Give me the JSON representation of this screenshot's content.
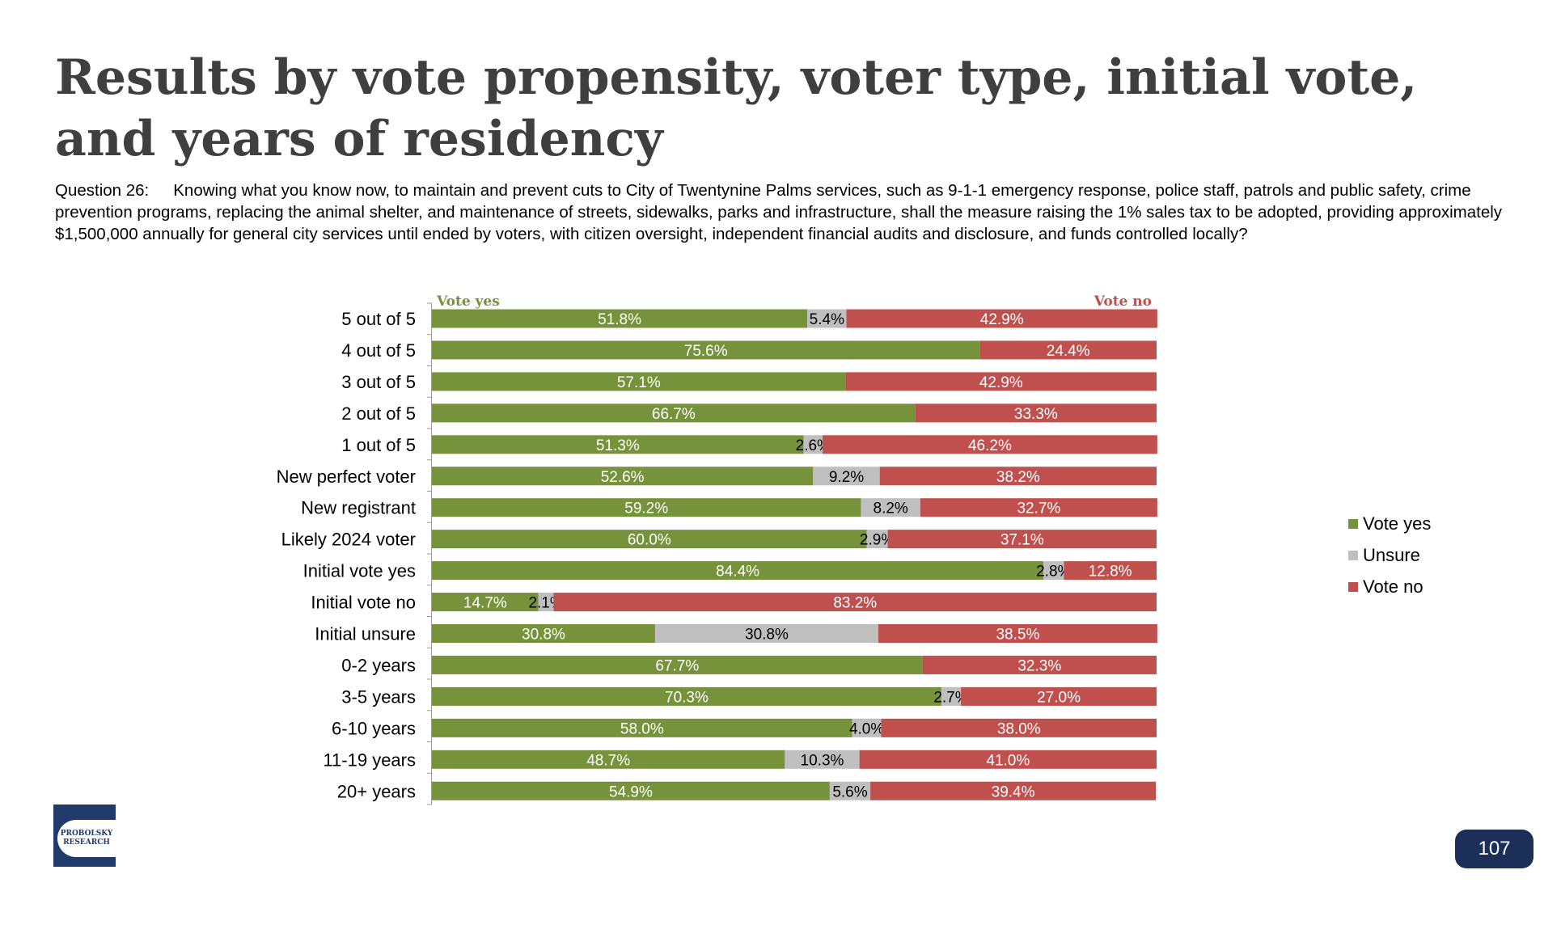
{
  "title_line1": "Results by vote propensity, voter type, initial vote,",
  "title_line2": "and years of residency",
  "question_label": "Question 26:",
  "question_text": "Knowing what you know now, to maintain and prevent cuts to City of Twentynine Palms services, such as 9-1-1 emergency response, police staff, patrols and public safety, crime prevention programs, replacing the animal shelter, and maintenance of streets, sidewalks, parks and infrastructure, shall the measure raising the 1% sales tax to be adopted, providing approximately $1,500,000 annually for general city services until ended by voters, with citizen oversight, independent financial audits and disclosure, and funds controlled locally?",
  "logo_text_line1": "PROBOLSKY",
  "logo_text_line2": "RESEARCH",
  "page_number": "107",
  "colors": {
    "vote_yes": "#76933c",
    "unsure": "#bfbfbf",
    "vote_no": "#c0504d",
    "title": "#3f3f3f",
    "badge": "#1b2f59"
  },
  "chart_data": {
    "type": "bar",
    "orientation": "horizontal",
    "stacked": true,
    "percent_stacked": true,
    "header_left": "Vote yes",
    "header_right": "Vote no",
    "legend_position": "right",
    "categories": [
      "5 out of 5",
      "4 out of 5",
      "3 out of 5",
      "2 out of 5",
      "1 out of 5",
      "New perfect voter",
      "New registrant",
      "Likely 2024 voter",
      "Initial vote yes",
      "Initial vote no",
      "Initial unsure",
      "0-2 years",
      "3-5 years",
      "6-10 years",
      "11-19 years",
      "20+ years"
    ],
    "series": [
      {
        "name": "Vote yes",
        "color": "#76933c",
        "values": [
          51.8,
          75.6,
          57.1,
          66.7,
          51.3,
          52.6,
          59.2,
          60.0,
          84.4,
          14.7,
          30.8,
          67.7,
          70.3,
          58.0,
          48.7,
          54.9
        ]
      },
      {
        "name": "Unsure",
        "color": "#bfbfbf",
        "values": [
          5.4,
          0,
          0,
          0,
          2.6,
          9.2,
          8.2,
          2.9,
          2.8,
          2.1,
          30.8,
          0,
          2.7,
          4.0,
          10.3,
          5.6
        ]
      },
      {
        "name": "Vote no",
        "color": "#c0504d",
        "values": [
          42.9,
          24.4,
          42.9,
          33.3,
          46.2,
          38.2,
          32.7,
          37.1,
          12.8,
          83.2,
          38.5,
          32.3,
          27.0,
          38.0,
          41.0,
          39.4
        ]
      }
    ],
    "xlim": [
      0,
      100
    ]
  }
}
